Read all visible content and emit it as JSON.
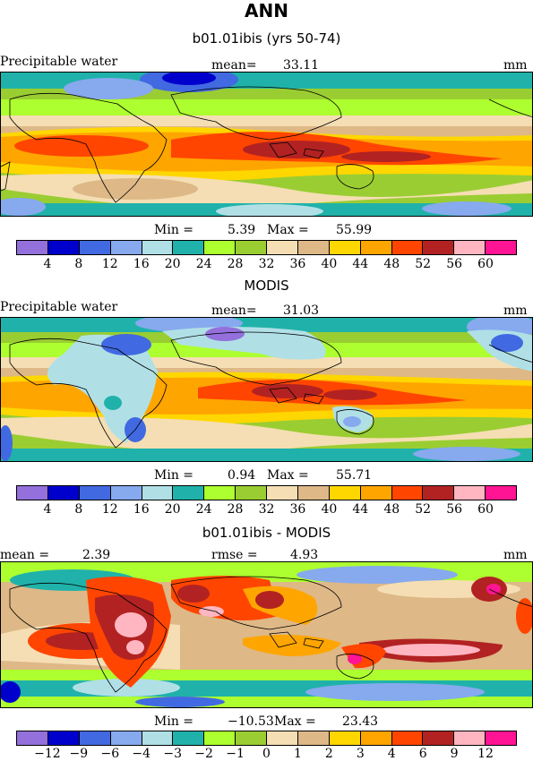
{
  "season": "ANN",
  "palette": [
    "#9370db",
    "#0000cd",
    "#4169e1",
    "#87a9ee",
    "#b0e0e6",
    "#20b2aa",
    "#adff2f",
    "#9acd32",
    "#f5deb3",
    "#deb887",
    "#ffd700",
    "#ffa500",
    "#ff4500",
    "#b22222",
    "#ffb6c1",
    "#ff1493"
  ],
  "panels": [
    {
      "title": "b01.01ibis (yrs 50-74)",
      "left_label": "Precipitable water",
      "mid_label": "mean=",
      "mid_value": "33.11",
      "units": "mm",
      "min_label": "Min =",
      "min_value": "5.39",
      "max_label": "Max =",
      "max_value": "55.99",
      "tick_labels": [
        "4",
        "8",
        "12",
        "16",
        "20",
        "24",
        "28",
        "32",
        "36",
        "40",
        "44",
        "48",
        "52",
        "56",
        "60"
      ]
    },
    {
      "title": "MODIS",
      "left_label": "Precipitable water",
      "mid_label": "mean=",
      "mid_value": "31.03",
      "units": "mm",
      "min_label": "Min =",
      "min_value": "0.94",
      "max_label": "Max =",
      "max_value": "55.71",
      "tick_labels": [
        "4",
        "8",
        "12",
        "16",
        "20",
        "24",
        "28",
        "32",
        "36",
        "40",
        "44",
        "48",
        "52",
        "56",
        "60"
      ]
    },
    {
      "title": "b01.01ibis - MODIS",
      "left_label": "mean =",
      "left_value": "2.39",
      "mid_label": "rmse =",
      "mid_value": "4.93",
      "units": "mm",
      "min_label": "Min =",
      "min_value": "−10.53",
      "max_label": "Max =",
      "max_value": "23.43",
      "tick_labels": [
        "−12",
        "−9",
        "−6",
        "−4",
        "−3",
        "−2",
        "−1",
        "0",
        "1",
        "2",
        "3",
        "4",
        "6",
        "9",
        "12"
      ]
    }
  ]
}
